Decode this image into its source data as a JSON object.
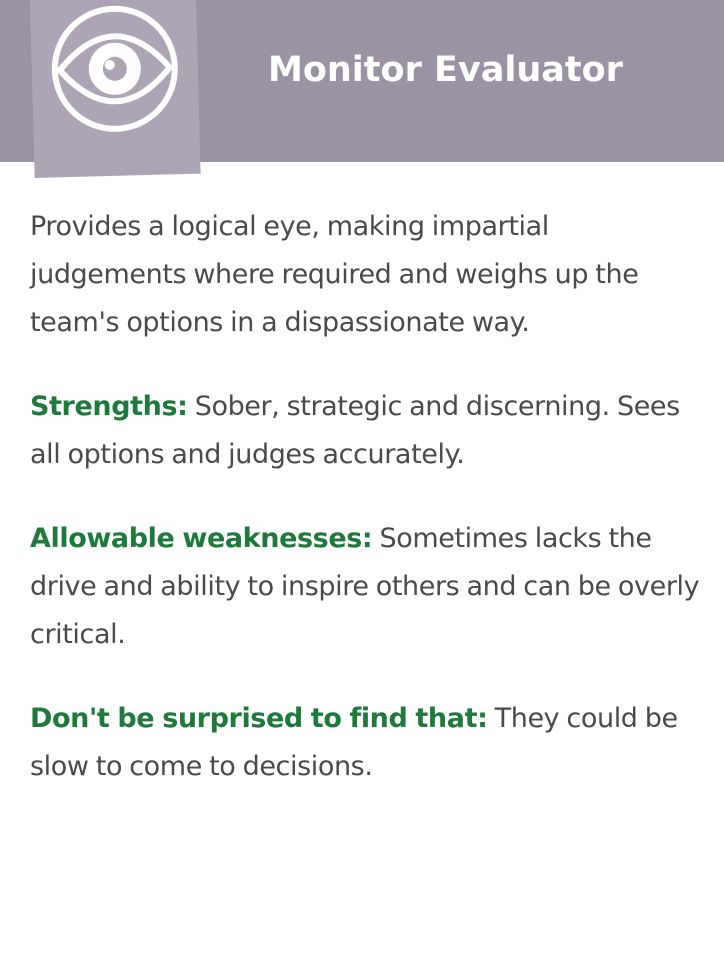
{
  "header": {
    "title": "Monitor Evaluator",
    "logo_icon": "eye-icon",
    "background_color": "#9b93a3",
    "badge_color": "#ada5b5"
  },
  "content": {
    "description": "Provides a logical eye, making impartial judgements where required and weighs up the team's options in a dispassionate way.",
    "sections": [
      {
        "label": "Strengths:",
        "text": " Sober, strategic and discerning. Sees all options and judges accurately."
      },
      {
        "label": "Allowable weaknesses:",
        "text": " Sometimes lacks the drive and ability to inspire others and can be overly critical."
      },
      {
        "label": "Don't be surprised to find that:",
        "text": " They could be slow to come to decisions."
      }
    ],
    "label_color": "#1e7a3c",
    "text_color": "#4a4a4a"
  }
}
